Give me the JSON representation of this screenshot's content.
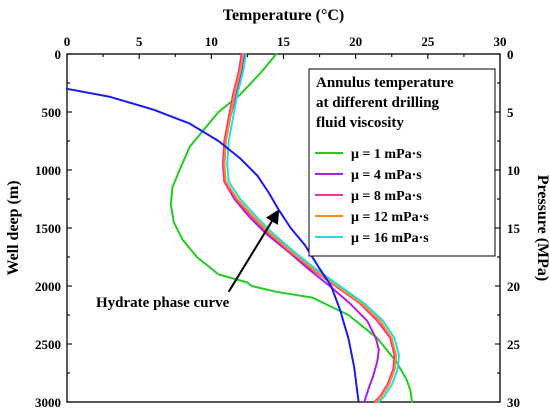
{
  "chart_data": {
    "type": "line",
    "xlabel_top": "Temperature (°C)",
    "ylabel_left": "Well deep (m)",
    "ylabel_right": "Pressure (MPa)",
    "x_top": {
      "min": 0,
      "max": 30,
      "ticks": [
        0,
        5,
        10,
        15,
        20,
        25,
        30
      ]
    },
    "y_left": {
      "min": 0,
      "max": 3000,
      "inverted": true,
      "ticks": [
        0,
        500,
        1000,
        1500,
        2000,
        2500,
        3000
      ]
    },
    "y_right": {
      "min": 0,
      "max": 30,
      "inverted": true,
      "ticks": [
        0,
        5,
        10,
        15,
        20,
        25,
        30
      ]
    },
    "legend": {
      "title_lines": [
        "Annulus temperature",
        " at different drilling",
        "fluid viscosity"
      ],
      "placement": "top-right"
    },
    "series": [
      {
        "name": "μ = 1 mPa·s",
        "color": "#22cc22",
        "points": [
          [
            14.5,
            0
          ],
          [
            13.5,
            150
          ],
          [
            12.0,
            350
          ],
          [
            10.5,
            500
          ],
          [
            9.5,
            650
          ],
          [
            8.5,
            800
          ],
          [
            7.8,
            1000
          ],
          [
            7.3,
            1150
          ],
          [
            7.2,
            1300
          ],
          [
            7.4,
            1450
          ],
          [
            8.0,
            1600
          ],
          [
            9.0,
            1750
          ],
          [
            10.5,
            1900
          ],
          [
            12.5,
            1970
          ],
          [
            12.8,
            2000
          ],
          [
            14.5,
            2050
          ],
          [
            17.0,
            2100
          ],
          [
            19.5,
            2250
          ],
          [
            21.5,
            2450
          ],
          [
            22.8,
            2650
          ],
          [
            23.5,
            2800
          ],
          [
            23.8,
            2900
          ],
          [
            23.9,
            3000
          ]
        ]
      },
      {
        "name": "μ = 4 mPa·s",
        "color": "#aa22dd",
        "points": [
          [
            12.3,
            0
          ],
          [
            12.1,
            150
          ],
          [
            11.7,
            350
          ],
          [
            11.3,
            550
          ],
          [
            11.0,
            750
          ],
          [
            10.9,
            950
          ],
          [
            10.9,
            1100
          ],
          [
            11.6,
            1250
          ],
          [
            12.6,
            1400
          ],
          [
            13.8,
            1550
          ],
          [
            15.3,
            1700
          ],
          [
            16.7,
            1850
          ],
          [
            18.2,
            2000
          ],
          [
            19.6,
            2150
          ],
          [
            20.8,
            2300
          ],
          [
            21.4,
            2450
          ],
          [
            21.6,
            2550
          ],
          [
            21.5,
            2650
          ],
          [
            21.2,
            2780
          ],
          [
            20.9,
            2880
          ],
          [
            20.6,
            3000
          ]
        ]
      },
      {
        "name": "μ = 8 mPa·s",
        "color": "#ee3399",
        "points": [
          [
            12.1,
            0
          ],
          [
            11.9,
            150
          ],
          [
            11.5,
            350
          ],
          [
            11.2,
            550
          ],
          [
            10.9,
            750
          ],
          [
            10.8,
            950
          ],
          [
            10.9,
            1100
          ],
          [
            11.7,
            1250
          ],
          [
            12.8,
            1400
          ],
          [
            14.0,
            1550
          ],
          [
            15.4,
            1700
          ],
          [
            16.9,
            1850
          ],
          [
            18.6,
            2000
          ],
          [
            20.3,
            2150
          ],
          [
            21.5,
            2300
          ],
          [
            22.4,
            2450
          ],
          [
            22.7,
            2600
          ],
          [
            22.6,
            2720
          ],
          [
            22.2,
            2850
          ],
          [
            21.7,
            2950
          ],
          [
            21.3,
            3000
          ]
        ]
      },
      {
        "name": "μ = 12 mPa·s",
        "color": "#ff8c1a",
        "points": [
          [
            12.2,
            0
          ],
          [
            12.0,
            150
          ],
          [
            11.6,
            350
          ],
          [
            11.3,
            550
          ],
          [
            11.0,
            750
          ],
          [
            10.9,
            950
          ],
          [
            11.0,
            1100
          ],
          [
            11.8,
            1250
          ],
          [
            12.9,
            1400
          ],
          [
            14.1,
            1550
          ],
          [
            15.5,
            1700
          ],
          [
            17.0,
            1850
          ],
          [
            18.7,
            2000
          ],
          [
            20.4,
            2150
          ],
          [
            21.7,
            2300
          ],
          [
            22.5,
            2450
          ],
          [
            22.8,
            2600
          ],
          [
            22.7,
            2720
          ],
          [
            22.3,
            2850
          ],
          [
            21.8,
            2950
          ],
          [
            21.4,
            3000
          ]
        ]
      },
      {
        "name": "μ = 16 mPa·s",
        "color": "#22dddd",
        "points": [
          [
            12.4,
            0
          ],
          [
            12.2,
            150
          ],
          [
            11.8,
            350
          ],
          [
            11.5,
            550
          ],
          [
            11.2,
            750
          ],
          [
            11.1,
            950
          ],
          [
            11.2,
            1100
          ],
          [
            12.0,
            1250
          ],
          [
            13.1,
            1400
          ],
          [
            14.3,
            1550
          ],
          [
            15.7,
            1700
          ],
          [
            17.2,
            1850
          ],
          [
            18.9,
            2000
          ],
          [
            20.6,
            2150
          ],
          [
            21.9,
            2300
          ],
          [
            22.7,
            2450
          ],
          [
            23.0,
            2600
          ],
          [
            22.9,
            2720
          ],
          [
            22.5,
            2850
          ],
          [
            22.0,
            2950
          ],
          [
            21.6,
            3000
          ]
        ]
      },
      {
        "name": "Hydrate phase curve",
        "color": "#1a1aee",
        "points": [
          [
            0.0,
            300
          ],
          [
            3.0,
            370
          ],
          [
            6.0,
            480
          ],
          [
            8.5,
            600
          ],
          [
            10.5,
            750
          ],
          [
            12.0,
            900
          ],
          [
            13.2,
            1050
          ],
          [
            14.0,
            1200
          ],
          [
            14.7,
            1350
          ],
          [
            15.5,
            1500
          ],
          [
            16.5,
            1650
          ],
          [
            17.5,
            1850
          ],
          [
            18.3,
            2000
          ],
          [
            18.9,
            2200
          ],
          [
            19.5,
            2450
          ],
          [
            19.9,
            2700
          ],
          [
            20.1,
            2900
          ],
          [
            20.2,
            3000
          ]
        ]
      }
    ],
    "annotation": {
      "text": "Hydrate phase curve",
      "arrow_to": [
        14.6,
        1360
      ],
      "arrow_from": [
        11.2,
        2050
      ]
    },
    "grid": false
  }
}
